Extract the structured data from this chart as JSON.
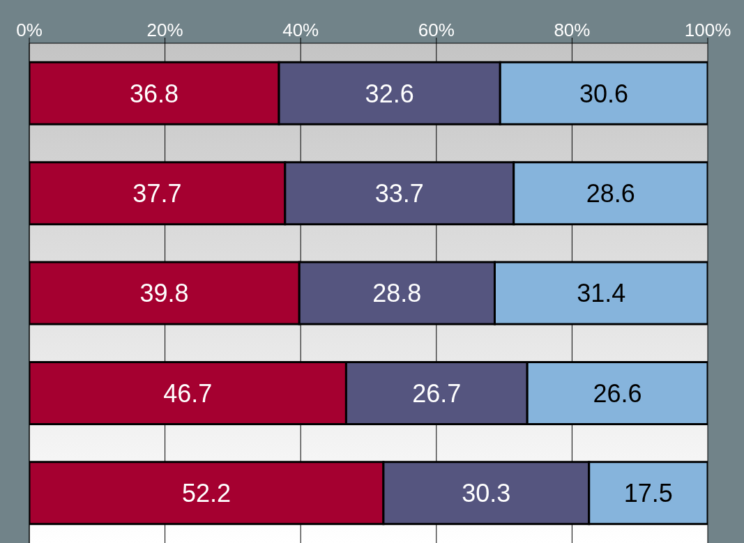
{
  "chart_data": {
    "type": "bar",
    "orientation": "horizontal",
    "stacked": true,
    "categories": [
      null,
      null,
      null,
      null,
      null
    ],
    "series": [
      {
        "color": "#a50030",
        "values": [
          36.8,
          37.7,
          39.8,
          46.7,
          52.2
        ]
      },
      {
        "color": "#55557f",
        "values": [
          32.6,
          33.7,
          28.8,
          26.7,
          30.3
        ]
      },
      {
        "color": "#86b4dc",
        "values": [
          30.6,
          28.6,
          31.4,
          26.6,
          17.5
        ]
      }
    ],
    "xlim": [
      0,
      100
    ],
    "xticks": [
      {
        "value": 0,
        "label": "0%"
      },
      {
        "value": 20,
        "label": "20%"
      },
      {
        "value": 40,
        "label": "40%"
      },
      {
        "value": 60,
        "label": "60%"
      },
      {
        "value": 80,
        "label": "80%"
      },
      {
        "value": 100,
        "label": "100%"
      }
    ],
    "grid": "x",
    "data_labels": true,
    "tick_labels": "x"
  }
}
